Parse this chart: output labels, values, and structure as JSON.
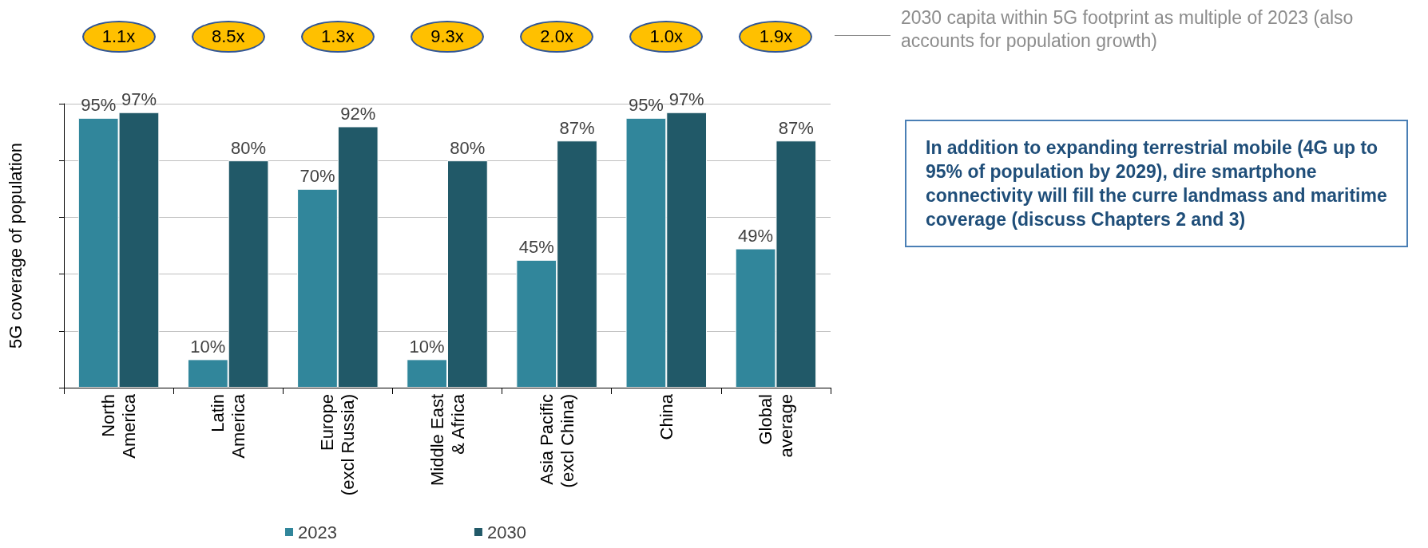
{
  "chart_data": {
    "type": "bar",
    "ylabel": "5G coverage of population",
    "categories": [
      "North\nAmerica",
      "Latin\nAmerica",
      "Europe\n(excl Russia)",
      "Middle East\n& Africa",
      "Asia Pacific\n(excl China)",
      "China",
      "Global\naverage"
    ],
    "series": [
      {
        "name": "2023",
        "color": "#31869b",
        "values": [
          95,
          10,
          70,
          10,
          45,
          95,
          49
        ],
        "value_labels": [
          "95%",
          "10%",
          "70%",
          "10%",
          "45%",
          "95%",
          "49%"
        ]
      },
      {
        "name": "2030",
        "color": "#215968",
        "values": [
          97,
          80,
          92,
          80,
          87,
          97,
          87
        ],
        "value_labels": [
          "97%",
          "80%",
          "92%",
          "80%",
          "87%",
          "97%",
          "87%"
        ]
      }
    ],
    "ylim": [
      0,
      100
    ],
    "yticks": [
      0,
      20,
      40,
      60,
      80,
      100
    ],
    "tick_labels": "x",
    "grid": "y",
    "legend": "bottom",
    "annotations": [
      "1.1x",
      "8.5x",
      "1.3x",
      "9.3x",
      "2.0x",
      "1.0x",
      "1.9x",
      "2030 capita within 5G footprint as multiple of 2023 (also accounts for population growth)",
      "In addition to expanding terrestrial mobile (4G up to 95% of population by 2029), dire smartphone connectivity will fill the curre landmass and maritime coverage (discuss Chapters 2 and 3)"
    ]
  }
}
